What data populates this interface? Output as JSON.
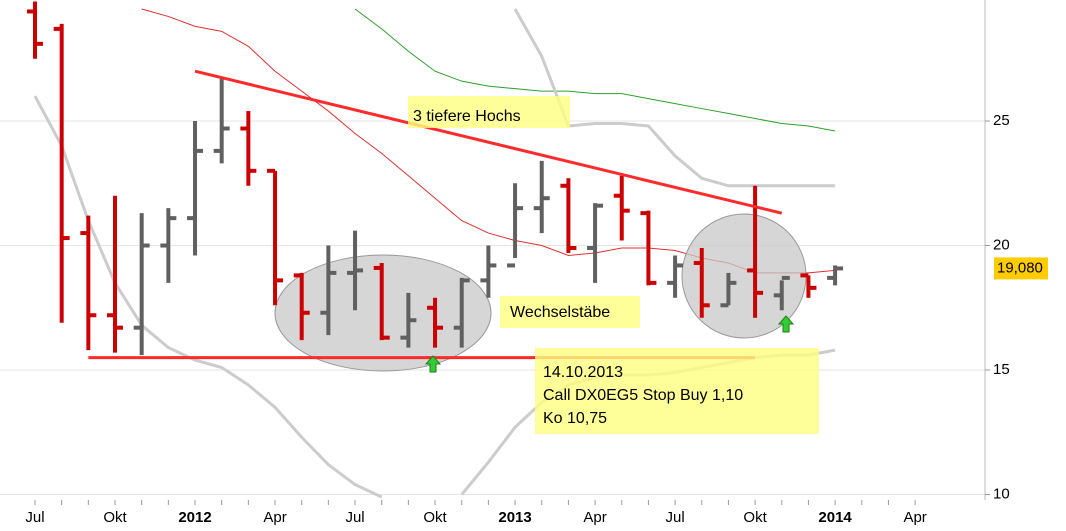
{
  "chart_data": {
    "type": "ohlc",
    "categories": [
      "Jul",
      null,
      null,
      "Okt",
      null,
      null,
      "2012",
      null,
      null,
      "Apr",
      null,
      null,
      "Jul",
      null,
      null,
      "Okt",
      null,
      null,
      "2013",
      null,
      null,
      "Apr",
      null,
      null,
      "Jul",
      null,
      null,
      "Okt",
      null,
      null,
      "2014",
      null,
      null,
      "Apr"
    ],
    "ohlc": {
      "up_color": "#606060",
      "down_color": "#cc0000",
      "open": [
        29.4,
        28.7,
        20.5,
        17.2,
        16.7,
        20.0,
        21.1,
        23.8,
        24.7,
        23.0,
        18.8,
        17.3,
        18.9,
        19.1,
        16.3,
        17.5,
        16.7,
        18.6,
        19.2,
        21.5,
        22.4,
        19.9,
        22.0,
        21.3,
        18.5,
        19.3,
        17.6,
        19.0,
        18.0,
        18.8,
        18.7,
        null,
        null,
        null
      ],
      "high": [
        29.8,
        28.9,
        21.2,
        22.0,
        21.3,
        21.5,
        25.0,
        26.7,
        25.4,
        23.0,
        18.9,
        20.0,
        20.6,
        19.3,
        18.1,
        17.9,
        18.7,
        20.0,
        22.5,
        23.4,
        22.7,
        21.7,
        22.8,
        21.4,
        19.6,
        19.9,
        18.9,
        22.4,
        18.6,
        18.8,
        19.2,
        null,
        null,
        null
      ],
      "low": [
        27.5,
        16.9,
        15.8,
        15.7,
        15.6,
        18.5,
        19.6,
        23.3,
        22.4,
        17.6,
        16.2,
        16.4,
        17.4,
        16.2,
        15.9,
        15.9,
        15.9,
        17.9,
        19.5,
        20.5,
        19.7,
        18.5,
        20.2,
        18.4,
        17.9,
        17.1,
        17.6,
        17.1,
        17.4,
        17.9,
        18.4,
        null,
        null,
        null
      ],
      "close": [
        28.1,
        20.3,
        17.2,
        16.7,
        20.0,
        21.1,
        23.8,
        24.7,
        23.0,
        18.6,
        17.3,
        18.9,
        19.0,
        16.3,
        17.0,
        16.7,
        18.6,
        19.2,
        21.5,
        21.9,
        19.9,
        21.6,
        21.4,
        18.5,
        19.2,
        17.6,
        18.5,
        18.1,
        18.7,
        18.3,
        19.08,
        null,
        null,
        null
      ]
    },
    "lines": [
      {
        "color": "#e03030",
        "width": 1,
        "values": [
          null,
          null,
          null,
          null,
          29.5,
          29.2,
          28.8,
          28.6,
          28.0,
          27.0,
          26.2,
          25.4,
          24.5,
          23.7,
          22.8,
          21.9,
          21.0,
          20.5,
          20.2,
          20.0,
          19.6,
          19.7,
          19.9,
          19.9,
          19.8,
          19.5,
          19.3,
          18.9,
          18.9,
          18.9,
          19.0,
          null,
          null,
          null
        ]
      },
      {
        "color": "#2ca02c",
        "width": 1,
        "values": [
          null,
          null,
          null,
          null,
          null,
          null,
          null,
          null,
          null,
          null,
          null,
          null,
          29.5,
          28.7,
          27.8,
          27.0,
          26.6,
          26.4,
          26.3,
          26.2,
          26.2,
          26.1,
          26.1,
          25.9,
          25.7,
          25.5,
          25.3,
          25.1,
          24.9,
          24.8,
          24.6,
          null,
          null,
          null
        ]
      },
      {
        "color": "#cccccc",
        "width": 3,
        "values": [
          null,
          null,
          null,
          null,
          null,
          null,
          null,
          null,
          null,
          null,
          null,
          null,
          null,
          null,
          null,
          null,
          null,
          null,
          29.5,
          27.6,
          24.8,
          24.9,
          24.9,
          24.8,
          23.6,
          22.7,
          22.4,
          22.4,
          22.4,
          22.4,
          22.4,
          null,
          null,
          null
        ]
      },
      {
        "color": "#cccccc",
        "width": 3,
        "values": [
          26.0,
          24.0,
          21.0,
          18.5,
          16.8,
          15.9,
          15.4,
          15.1,
          14.4,
          13.5,
          12.3,
          11.2,
          10.4,
          9.9,
          null,
          null,
          10.0,
          11.3,
          12.7,
          13.7,
          14.4,
          14.7,
          14.8,
          14.8,
          14.9,
          15.1,
          15.3,
          15.5,
          15.6,
          15.6,
          15.8,
          null,
          null,
          null
        ]
      }
    ],
    "trend_lines": [
      {
        "color": "#ff2a2a",
        "points": [
          [
            6,
            27.0
          ],
          [
            28,
            21.3
          ]
        ]
      },
      {
        "color": "#ff2a2a",
        "points": [
          [
            2,
            15.5
          ],
          [
            27,
            15.5
          ]
        ]
      }
    ],
    "ylim": [
      9.78,
      29.86
    ],
    "yticks": [
      10,
      15,
      20,
      25
    ],
    "grid": true,
    "last_price": {
      "value": 19.08,
      "label": "19,080"
    },
    "annotations": {
      "highs": "3 tiefere Hochs",
      "bars": "Wechselstäbe",
      "signal": [
        "14.10.2013",
        "Call DX0EG5 Stop Buy 1,10",
        "Ko 10,75"
      ]
    }
  }
}
